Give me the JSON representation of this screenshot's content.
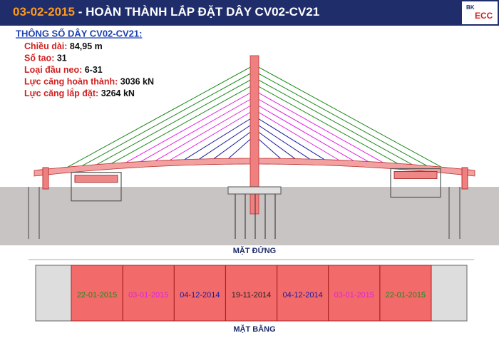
{
  "header": {
    "date": "03-02-2015",
    "title": " - HOÀN THÀNH LẮP ĐẶT DÂY CV02-CV21"
  },
  "logo": {
    "line1": "BK",
    "line2": "ECC"
  },
  "specs": {
    "heading": "THÔNG SỐ DÂY CV02-CV21:",
    "items": [
      {
        "label": "Chiều dài:",
        "value": "84,95 m"
      },
      {
        "label": "Số tao:",
        "value": "31"
      },
      {
        "label": "Loại đầu neo:",
        "value": "6-31"
      },
      {
        "label": "Lực căng hoàn thành:",
        "value": "3036 kN"
      },
      {
        "label": "Lực căng lắp đặt:",
        "value": "3264 kN"
      }
    ]
  },
  "elevation": {
    "label": "MẶT ĐỨNG"
  },
  "plan": {
    "label": "MẶT BẰNG",
    "segments": [
      {
        "date": "22-01-2015",
        "color": "#1a8a1a"
      },
      {
        "date": "03-01-2015",
        "color": "#e020e0"
      },
      {
        "date": "04-12-2014",
        "color": "#1a1aa0"
      },
      {
        "date": "19-11-2014",
        "color": "#222222"
      },
      {
        "date": "04-12-2014",
        "color": "#1a1aa0"
      },
      {
        "date": "03-01-2015",
        "color": "#e020e0"
      },
      {
        "date": "22-01-2015",
        "color": "#1a8a1a"
      }
    ]
  }
}
